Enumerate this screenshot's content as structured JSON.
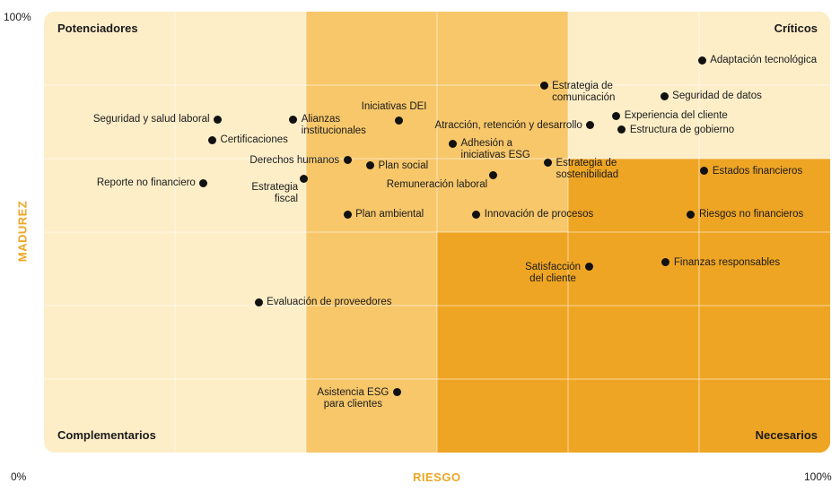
{
  "chart_data": {
    "type": "scatter",
    "title": "",
    "xlabel": "RIESGO",
    "ylabel": "MADUREZ",
    "xlim": [
      0,
      100
    ],
    "ylim": [
      0,
      100
    ],
    "x_ticks": {
      "min": "0%",
      "max": "100%"
    },
    "y_ticks": {
      "max": "100%"
    },
    "colors": {
      "light": "#fdeec8",
      "mid": "#f7c76a",
      "dark": "#efa524",
      "grid": "#ffffff",
      "axis_label": "#eea623",
      "point": "#111111"
    },
    "quadrants": {
      "top_left": "Potenciadores",
      "top_right": "Críticos",
      "bottom_left": "Complementarios",
      "bottom_right": "Necesarios"
    },
    "points": [
      {
        "label": "Adaptación tecnológica",
        "x": 83.7,
        "y": 89.0,
        "pos": "right"
      },
      {
        "label": "Estrategia de\ncomunicación",
        "x": 63.6,
        "y": 83.2,
        "pos": "right"
      },
      {
        "label": "Seguridad de datos",
        "x": 78.9,
        "y": 80.8,
        "pos": "right"
      },
      {
        "label": "Iniciativas DEI",
        "x": 45.1,
        "y": 75.4,
        "pos": "above"
      },
      {
        "label": "Seguridad y salud laboral",
        "x": 22.1,
        "y": 75.6,
        "pos": "left"
      },
      {
        "label": "Alianzas\ninstitucionales",
        "x": 31.7,
        "y": 75.6,
        "pos": "right"
      },
      {
        "label": "Atracción, retención y desarrollo",
        "x": 69.5,
        "y": 74.2,
        "pos": "left"
      },
      {
        "label": "Experiencia del cliente",
        "x": 72.8,
        "y": 76.4,
        "pos": "right"
      },
      {
        "label": "Estructura de gobierno",
        "x": 73.5,
        "y": 73.2,
        "pos": "right"
      },
      {
        "label": "Certificaciones",
        "x": 21.4,
        "y": 70.9,
        "pos": "right"
      },
      {
        "label": "Adhesión a\niniciativas ESG",
        "x": 52.0,
        "y": 70.1,
        "pos": "right"
      },
      {
        "label": "Derechos humanos",
        "x": 38.6,
        "y": 66.3,
        "pos": "left"
      },
      {
        "label": "Plan social",
        "x": 41.5,
        "y": 65.1,
        "pos": "right"
      },
      {
        "label": "Estrategia de\nsostenibilidad",
        "x": 64.1,
        "y": 65.7,
        "pos": "right"
      },
      {
        "label": "Estados financieros",
        "x": 84.0,
        "y": 63.9,
        "pos": "right"
      },
      {
        "label": "Remuneración laboral",
        "x": 57.1,
        "y": 62.9,
        "pos": "below-left"
      },
      {
        "label": "Reporte no financiero",
        "x": 20.3,
        "y": 61.1,
        "pos": "left"
      },
      {
        "label": "Estrategia\nfiscal",
        "x": 33.0,
        "y": 62.1,
        "pos": "below-left"
      },
      {
        "label": "Plan ambiental",
        "x": 38.6,
        "y": 54.0,
        "pos": "right"
      },
      {
        "label": "Innovación de procesos",
        "x": 55.0,
        "y": 54.0,
        "pos": "right"
      },
      {
        "label": "Riesgos no financieros",
        "x": 82.3,
        "y": 54.0,
        "pos": "right"
      },
      {
        "label": "Finanzas responsables",
        "x": 79.1,
        "y": 43.1,
        "pos": "right"
      },
      {
        "label": "Satisfacción\ndel cliente",
        "x": 69.3,
        "y": 42.1,
        "pos": "left"
      },
      {
        "label": "Evaluación de proveedores",
        "x": 27.3,
        "y": 34.1,
        "pos": "right"
      },
      {
        "label": "Asistencia ESG\npara clientes",
        "x": 44.9,
        "y": 13.7,
        "pos": "left"
      }
    ]
  }
}
